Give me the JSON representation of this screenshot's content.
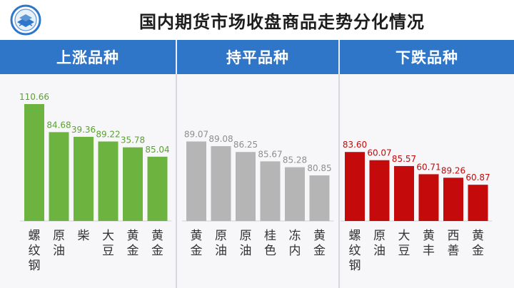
{
  "title": "国内期货市场收盘商品走势分化情况",
  "colors": {
    "header_band": "#2f76c9",
    "up": "#6db33f",
    "up_label": "#5aa22f",
    "flat": "#b5b5b5",
    "flat_label": "#8e8e8e",
    "down": "#c40a0a",
    "down_label": "#c40a0a"
  },
  "panels": [
    {
      "header": "上涨品种"
    },
    {
      "header": "持平品种"
    },
    {
      "header": "下跌品种"
    }
  ],
  "chart_data": [
    {
      "type": "bar",
      "title": "上涨品种",
      "categories": [
        "螺纹钢",
        "原油",
        "柴",
        "大豆",
        "黄金",
        "黄金"
      ],
      "values": [
        110.66,
        84.68,
        39.36,
        89.22,
        35.78,
        85.04
      ],
      "bar_heights_relative": [
        1.0,
        0.76,
        0.72,
        0.68,
        0.63,
        0.55
      ],
      "color": "up"
    },
    {
      "type": "bar",
      "title": "持平品种",
      "categories": [
        "黄金",
        "原油",
        "原油",
        "桂色",
        "冻内",
        "黄金"
      ],
      "values": [
        89.07,
        89.08,
        86.25,
        85.67,
        85.28,
        80.85
      ],
      "bar_heights_relative": [
        0.68,
        0.64,
        0.59,
        0.51,
        0.46,
        0.39
      ],
      "color": "flat"
    },
    {
      "type": "bar",
      "title": "下跌品种",
      "categories": [
        "螺纹钢",
        "原油",
        "大豆",
        "黄丰",
        "西善",
        "黄金"
      ],
      "values": [
        83.6,
        60.07,
        85.57,
        60.71,
        89.26,
        60.87
      ],
      "bar_heights_relative": [
        0.59,
        0.52,
        0.47,
        0.4,
        0.37,
        0.31
      ],
      "color": "down"
    }
  ]
}
